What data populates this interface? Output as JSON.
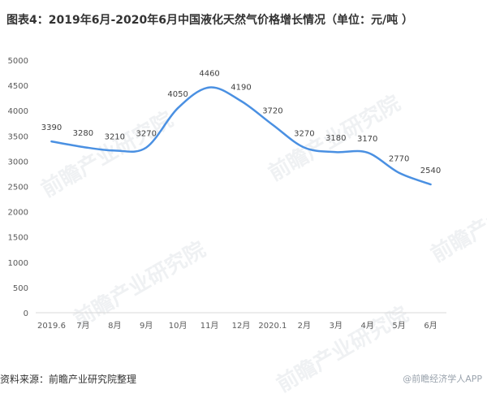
{
  "title": "图表4：2019年6月-2020年6月中国液化天然气价格增长情况（单位：元/吨 ）",
  "source": "资料来源：前瞻产业研究院整理",
  "watermark": "前瞻产业研究院",
  "corner_watermark": "@前瞻经济学人APP",
  "colors": {
    "line": "#4a90e2",
    "axis_text": "#595959",
    "title": "#333333"
  },
  "chart_data": {
    "type": "line",
    "title": "图表4：2019年6月-2020年6月中国液化天然气价格增长情况（单位：元/吨 ）",
    "categories": [
      "2019.6",
      "7月",
      "8月",
      "9月",
      "10月",
      "11月",
      "12月",
      "2020.1",
      "2月",
      "3月",
      "4月",
      "5月",
      "6月"
    ],
    "series": [
      {
        "values": [
          3390,
          3280,
          3210,
          3270,
          4050,
          4460,
          4190,
          3720,
          3270,
          3180,
          3170,
          2770,
          2540
        ]
      }
    ],
    "yticks": [
      "0",
      "500",
      "1000",
      "1500",
      "2000",
      "2500",
      "3000",
      "3500",
      "4000",
      "4500",
      "5000"
    ],
    "ylim": [
      0,
      5000
    ],
    "grid": false,
    "legend": "none"
  }
}
